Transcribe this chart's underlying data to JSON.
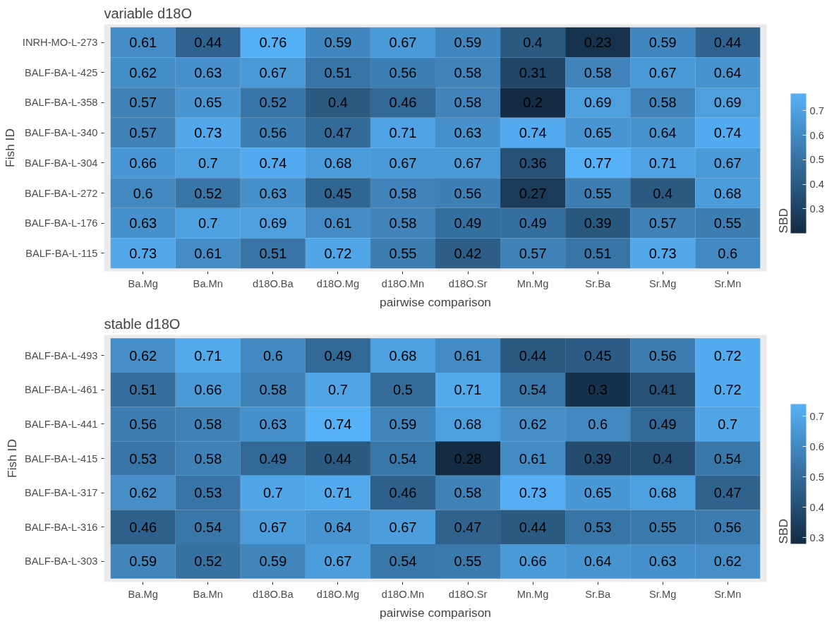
{
  "chart_data": [
    {
      "type": "heatmap",
      "title": "variable d18O",
      "xlabel": "pairwise comparison",
      "ylabel": "Fish ID",
      "clabel": "SBD",
      "categories": [
        "Ba.Mg",
        "Ba.Mn",
        "d18O.Ba",
        "d18O.Mg",
        "d18O.Mn",
        "d18O.Sr",
        "Mn.Mg",
        "Sr.Ba",
        "Sr.Mg",
        "Sr.Mn"
      ],
      "y_categories": [
        "INRH-MO-L-273",
        "BALF-BA-L-425",
        "BALF-BA-L-358",
        "BALF-BA-L-340",
        "BALF-BA-L-304",
        "BALF-BA-L-272",
        "BALF-BA-L-176",
        "BALF-BA-L-115"
      ],
      "cells": [
        [
          0.61,
          0.44,
          0.76,
          0.59,
          0.67,
          0.59,
          0.4,
          0.23,
          0.59,
          0.44
        ],
        [
          0.62,
          0.63,
          0.67,
          0.51,
          0.56,
          0.58,
          0.31,
          0.58,
          0.67,
          0.64
        ],
        [
          0.57,
          0.65,
          0.52,
          0.4,
          0.46,
          0.58,
          0.2,
          0.69,
          0.58,
          0.69
        ],
        [
          0.57,
          0.73,
          0.56,
          0.47,
          0.71,
          0.63,
          0.74,
          0.65,
          0.64,
          0.74
        ],
        [
          0.66,
          0.7,
          0.74,
          0.68,
          0.67,
          0.67,
          0.36,
          0.77,
          0.71,
          0.67
        ],
        [
          0.6,
          0.52,
          0.63,
          0.45,
          0.58,
          0.56,
          0.27,
          0.55,
          0.4,
          0.68
        ],
        [
          0.63,
          0.7,
          0.69,
          0.61,
          0.58,
          0.49,
          0.49,
          0.39,
          0.57,
          0.55
        ],
        [
          0.73,
          0.61,
          0.51,
          0.72,
          0.55,
          0.42,
          0.57,
          0.51,
          0.73,
          0.6
        ]
      ],
      "clim": [
        0.2,
        0.77
      ],
      "cticks": [
        0.3,
        0.4,
        0.5,
        0.6,
        0.7
      ],
      "data_labels": true
    },
    {
      "type": "heatmap",
      "title": "stable d18O",
      "xlabel": "pairwise comparison",
      "ylabel": "Fish ID",
      "clabel": "SBD",
      "categories": [
        "Ba.Mg",
        "Ba.Mn",
        "d18O.Ba",
        "d18O.Mg",
        "d18O.Mn",
        "d18O.Sr",
        "Mn.Mg",
        "Sr.Ba",
        "Sr.Mg",
        "Sr.Mn"
      ],
      "y_categories": [
        "BALF-BA-L-493",
        "BALF-BA-L-461",
        "BALF-BA-L-441",
        "BALF-BA-L-415",
        "BALF-BA-L-317",
        "BALF-BA-L-316",
        "BALF-BA-L-303"
      ],
      "cells": [
        [
          0.62,
          0.71,
          0.6,
          0.49,
          0.68,
          0.61,
          0.44,
          0.45,
          0.56,
          0.72
        ],
        [
          0.51,
          0.66,
          0.58,
          0.7,
          0.5,
          0.71,
          0.54,
          0.3,
          0.41,
          0.72
        ],
        [
          0.56,
          0.58,
          0.63,
          0.74,
          0.59,
          0.68,
          0.62,
          0.6,
          0.49,
          0.7
        ],
        [
          0.53,
          0.58,
          0.49,
          0.44,
          0.54,
          0.28,
          0.61,
          0.39,
          0.4,
          0.54
        ],
        [
          0.62,
          0.53,
          0.7,
          0.71,
          0.46,
          0.58,
          0.73,
          0.65,
          0.68,
          0.47
        ],
        [
          0.46,
          0.54,
          0.67,
          0.64,
          0.67,
          0.47,
          0.44,
          0.53,
          0.55,
          0.56
        ],
        [
          0.59,
          0.52,
          0.59,
          0.67,
          0.54,
          0.55,
          0.66,
          0.64,
          0.63,
          0.62
        ]
      ],
      "clim": [
        0.28,
        0.74
      ],
      "cticks": [
        0.3,
        0.4,
        0.5,
        0.6,
        0.7
      ],
      "data_labels": true
    }
  ]
}
